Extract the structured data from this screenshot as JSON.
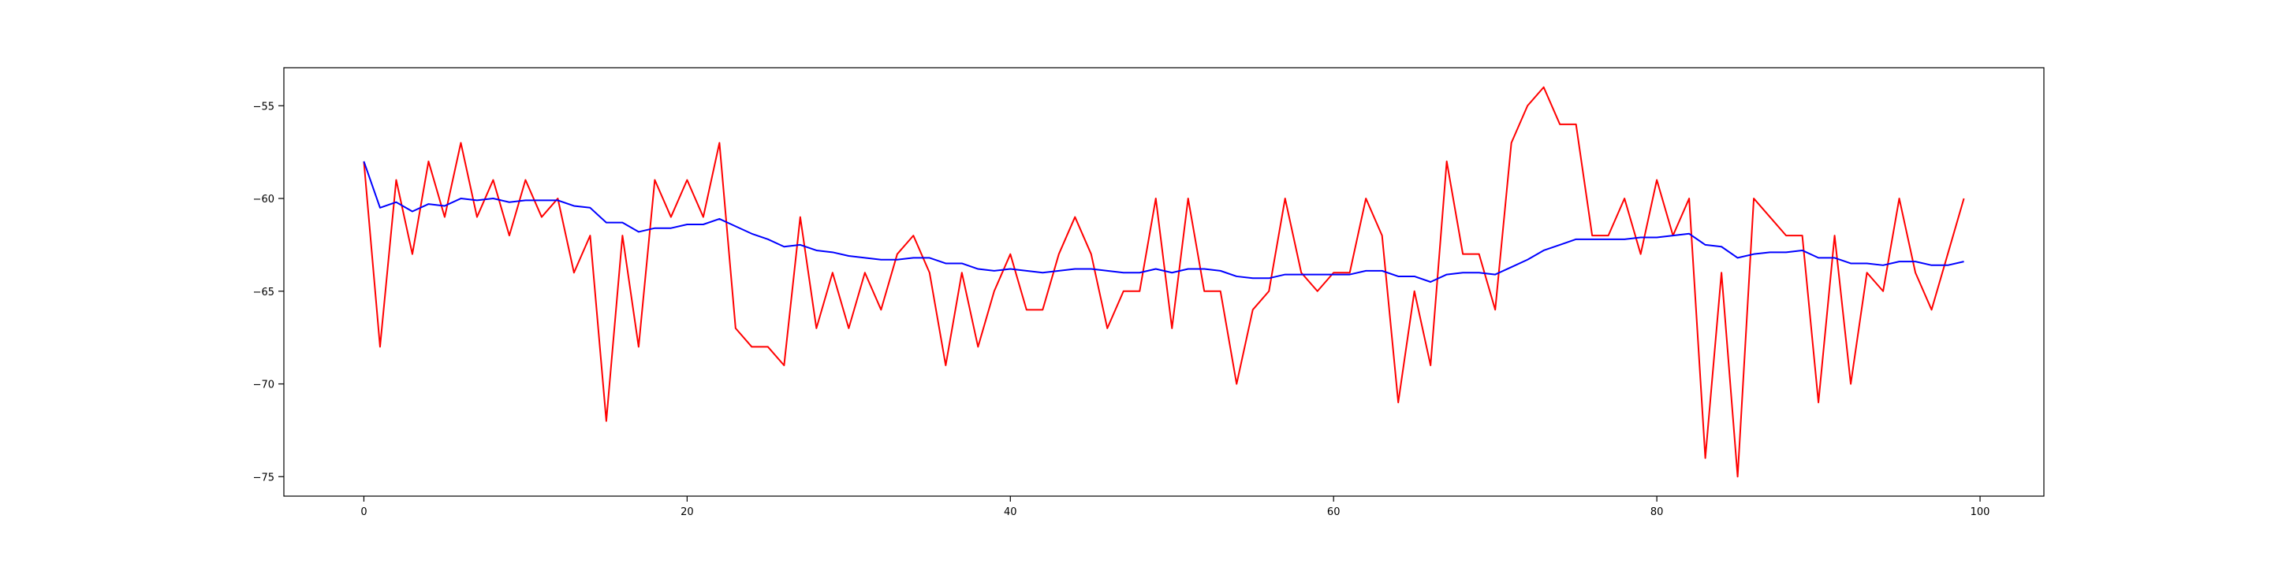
{
  "chart_data": {
    "type": "line",
    "title": "",
    "xlabel": "",
    "ylabel": "",
    "xlim": [
      -4.95,
      103.95
    ],
    "ylim": [
      -76.05,
      -52.95
    ],
    "xticks": [
      0,
      20,
      40,
      60,
      80,
      100
    ],
    "yticks": [
      -55,
      -60,
      -65,
      -70,
      -75
    ],
    "grid": false,
    "legend": "none",
    "series": [
      {
        "color": "#ff0000",
        "x": [
          0,
          1,
          2,
          3,
          4,
          5,
          6,
          7,
          8,
          9,
          10,
          11,
          12,
          13,
          14,
          15,
          16,
          17,
          18,
          19,
          20,
          21,
          22,
          23,
          24,
          25,
          26,
          27,
          28,
          29,
          30,
          31,
          32,
          33,
          34,
          35,
          36,
          37,
          38,
          39,
          40,
          41,
          42,
          43,
          44,
          45,
          46,
          47,
          48,
          49,
          50,
          51,
          52,
          53,
          54,
          55,
          56,
          57,
          58,
          59,
          60,
          61,
          62,
          63,
          64,
          65,
          66,
          67,
          68,
          69,
          70,
          71,
          72,
          73,
          74,
          75,
          76,
          77,
          78,
          79,
          80,
          81,
          82,
          83,
          84,
          85,
          86,
          87,
          88,
          89,
          90,
          91,
          92,
          93,
          94,
          95,
          96,
          97,
          98,
          99
        ],
        "values": [
          -58,
          -68,
          -59,
          -63,
          -58,
          -61,
          -57,
          -61,
          -59,
          -62,
          -59,
          -61,
          -60,
          -64,
          -62,
          -72,
          -62,
          -68,
          -59,
          -61,
          -59,
          -61,
          -57,
          -67,
          -68,
          -68,
          -69,
          -61,
          -67,
          -64,
          -67,
          -64,
          -66,
          -63,
          -62,
          -64,
          -69,
          -64,
          -68,
          -65,
          -63,
          -66,
          -66,
          -63,
          -61,
          -63,
          -67,
          -65,
          -65,
          -60,
          -67,
          -60,
          -65,
          -65,
          -70,
          -66,
          -65,
          -60,
          -64,
          -65,
          -64,
          -64,
          -60,
          -62,
          -71,
          -65,
          -69,
          -58,
          -63,
          -63,
          -66,
          -57,
          -55,
          -54,
          -56,
          -56,
          -62,
          -62,
          -60,
          -63,
          -59,
          -62,
          -60,
          -74,
          -64,
          -75,
          -60,
          -61,
          -62,
          -62,
          -71,
          -62,
          -70,
          -64,
          -65,
          -60,
          -64,
          -66,
          -63,
          -60
        ]
      },
      {
        "color": "#0000ff",
        "x": [
          0,
          1,
          2,
          3,
          4,
          5,
          6,
          7,
          8,
          9,
          10,
          11,
          12,
          13,
          14,
          15,
          16,
          17,
          18,
          19,
          20,
          21,
          22,
          23,
          24,
          25,
          26,
          27,
          28,
          29,
          30,
          31,
          32,
          33,
          34,
          35,
          36,
          37,
          38,
          39,
          40,
          41,
          42,
          43,
          44,
          45,
          46,
          47,
          48,
          49,
          50,
          51,
          52,
          53,
          54,
          55,
          56,
          57,
          58,
          59,
          60,
          61,
          62,
          63,
          64,
          65,
          66,
          67,
          68,
          69,
          70,
          71,
          72,
          73,
          74,
          75,
          76,
          77,
          78,
          79,
          80,
          81,
          82,
          83,
          84,
          85,
          86,
          87,
          88,
          89,
          90,
          91,
          92,
          93,
          94,
          95,
          96,
          97,
          98,
          99
        ],
        "values": [
          -58,
          -60.5,
          -60.2,
          -60.7,
          -60.3,
          -60.4,
          -60.0,
          -60.1,
          -60.0,
          -60.2,
          -60.1,
          -60.1,
          -60.1,
          -60.4,
          -60.5,
          -61.3,
          -61.3,
          -61.8,
          -61.6,
          -61.6,
          -61.4,
          -61.4,
          -61.1,
          -61.5,
          -61.9,
          -62.2,
          -62.6,
          -62.5,
          -62.8,
          -62.9,
          -63.1,
          -63.2,
          -63.3,
          -63.3,
          -63.2,
          -63.2,
          -63.5,
          -63.5,
          -63.8,
          -63.9,
          -63.8,
          -63.9,
          -64.0,
          -63.9,
          -63.8,
          -63.8,
          -63.9,
          -64.0,
          -64.0,
          -63.8,
          -64.0,
          -63.8,
          -63.8,
          -63.9,
          -64.2,
          -64.3,
          -64.3,
          -64.1,
          -64.1,
          -64.1,
          -64.1,
          -64.1,
          -63.9,
          -63.9,
          -64.2,
          -64.2,
          -64.5,
          -64.1,
          -64.0,
          -64.0,
          -64.1,
          -63.7,
          -63.3,
          -62.8,
          -62.5,
          -62.2,
          -62.2,
          -62.2,
          -62.2,
          -62.1,
          -62.1,
          -62.0,
          -61.9,
          -62.5,
          -62.6,
          -63.2,
          -63.0,
          -62.9,
          -62.9,
          -62.8,
          -63.2,
          -63.2,
          -63.5,
          -63.5,
          -63.6,
          -63.4,
          -63.4,
          -63.6,
          -63.6,
          -63.4
        ]
      }
    ]
  }
}
